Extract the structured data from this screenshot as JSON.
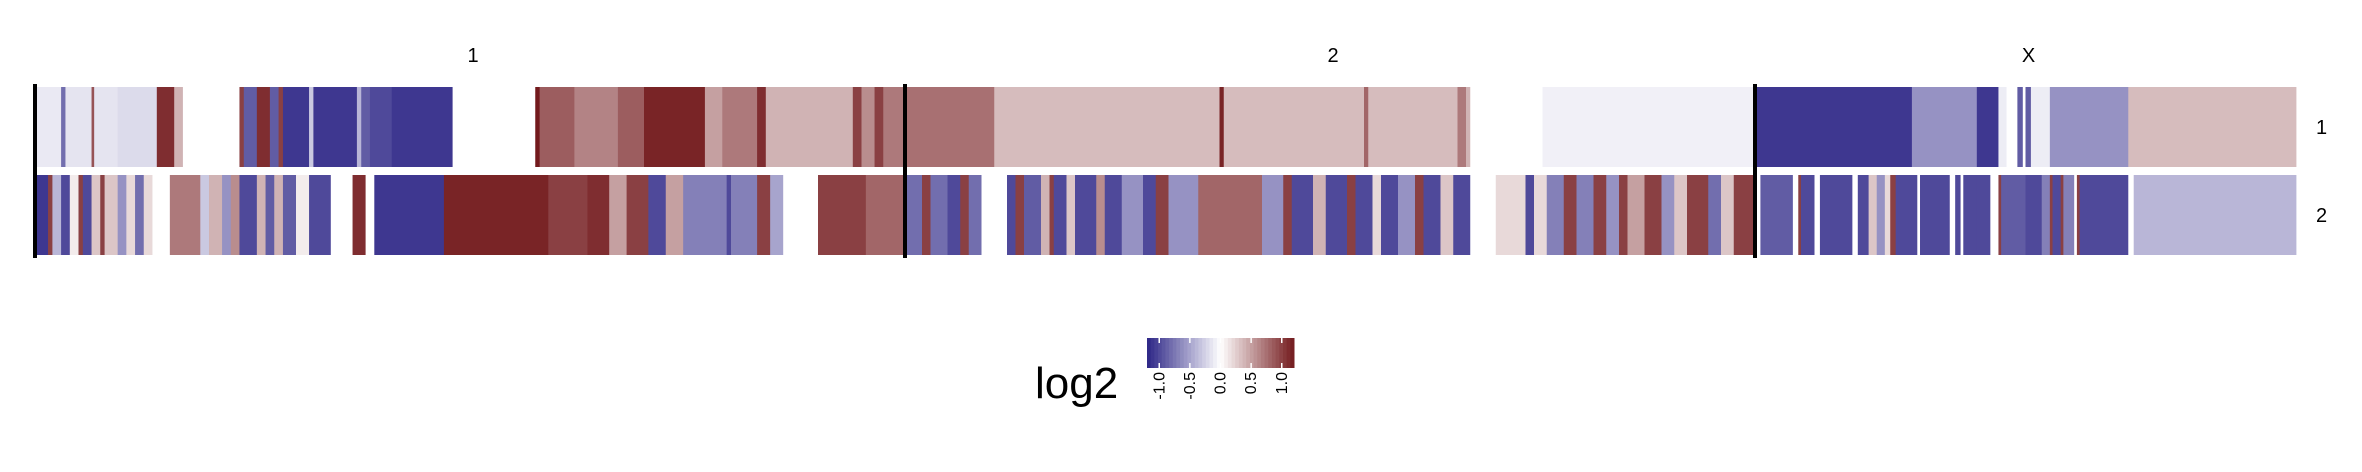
{
  "chart_data": {
    "type": "heatmap",
    "chromosomes": [
      "1",
      "2",
      "X"
    ],
    "samples": [
      "1",
      "2"
    ],
    "legend": {
      "title": "log2",
      "ticks": [
        "-1.0",
        "-0.5",
        "0.0",
        "0.5",
        "1.0"
      ],
      "range": [
        -1.2,
        1.2
      ],
      "colors": {
        "low": "#2c2586",
        "mid": "#ffffff",
        "high": "#731a1d"
      }
    },
    "rows": [
      {
        "sample": "1",
        "segments": {
          "1": [
            [
              0,
              0.03,
              -0.12
            ],
            [
              0.03,
              0.035,
              -0.8
            ],
            [
              0.035,
              0.065,
              -0.15
            ],
            [
              0.065,
              0.068,
              0.9
            ],
            [
              0.068,
              0.095,
              -0.15
            ],
            [
              0.095,
              0.14,
              -0.2
            ],
            [
              0.14,
              0.16,
              1.1
            ],
            [
              0.16,
              0.17,
              0.4
            ],
            [
              0.17,
              0.235,
              0.0
            ],
            [
              0.235,
              0.24,
              1.0
            ],
            [
              0.24,
              0.255,
              -0.9
            ],
            [
              0.255,
              0.27,
              1.1
            ],
            [
              0.27,
              0.28,
              -0.9
            ],
            [
              0.28,
              0.285,
              1.0
            ],
            [
              0.285,
              0.315,
              -1.1
            ],
            [
              0.315,
              0.32,
              -0.3
            ],
            [
              0.32,
              0.37,
              -1.1
            ],
            [
              0.37,
              0.375,
              -0.4
            ],
            [
              0.375,
              0.385,
              -0.9
            ],
            [
              0.385,
              0.41,
              -1.0
            ],
            [
              0.41,
              0.48,
              -1.1
            ],
            [
              0.48,
              0.575,
              0.0
            ],
            [
              0.575,
              0.58,
              1.2
            ],
            [
              0.58,
              0.62,
              0.85
            ],
            [
              0.62,
              0.67,
              0.65
            ],
            [
              0.67,
              0.7,
              0.85
            ],
            [
              0.7,
              0.77,
              1.15
            ],
            [
              0.77,
              0.79,
              0.5
            ],
            [
              0.79,
              0.83,
              0.7
            ],
            [
              0.83,
              0.84,
              1.1
            ],
            [
              0.84,
              0.94,
              0.4
            ],
            [
              0.94,
              0.95,
              1.0
            ],
            [
              0.95,
              0.965,
              0.6
            ],
            [
              0.965,
              0.975,
              1.0
            ],
            [
              0.975,
              1.0,
              0.7
            ]
          ],
          "2": [
            [
              0,
              0.105,
              0.75
            ],
            [
              0.105,
              0.37,
              0.35
            ],
            [
              0.37,
              0.375,
              1.15
            ],
            [
              0.375,
              0.54,
              0.35
            ],
            [
              0.54,
              0.545,
              0.8
            ],
            [
              0.545,
              0.65,
              0.35
            ],
            [
              0.65,
              0.66,
              0.7
            ],
            [
              0.66,
              0.665,
              0.4
            ],
            [
              0.665,
              0.75,
              0.0
            ],
            [
              0.75,
              1.0,
              -0.08
            ]
          ],
          "X": [
            [
              0,
              0.29,
              -1.1
            ],
            [
              0.29,
              0.41,
              -0.6
            ],
            [
              0.41,
              0.41,
              -0.6
            ],
            [
              0.41,
              0.45,
              -1.1
            ],
            [
              0.45,
              0.465,
              -0.1
            ],
            [
              0.465,
              0.485,
              0.0
            ],
            [
              0.485,
              0.495,
              -0.9
            ],
            [
              0.495,
              0.5,
              0.0
            ],
            [
              0.5,
              0.51,
              -0.9
            ],
            [
              0.51,
              0.515,
              -0.1
            ],
            [
              0.515,
              0.545,
              -0.1
            ],
            [
              0.545,
              0.61,
              -0.6
            ],
            [
              0.61,
              0.69,
              -0.6
            ],
            [
              0.69,
              1.0,
              0.35
            ]
          ]
        }
      },
      {
        "sample": "2",
        "segments": {
          "1": [
            [
              0,
              0.015,
              -1.1
            ],
            [
              0.015,
              0.02,
              1.0
            ],
            [
              0.02,
              0.03,
              -0.4
            ],
            [
              0.03,
              0.04,
              -1.0
            ],
            [
              0.04,
              0.05,
              0.1
            ],
            [
              0.05,
              0.055,
              1.0
            ],
            [
              0.055,
              0.065,
              -1.0
            ],
            [
              0.065,
              0.075,
              0.3
            ],
            [
              0.075,
              0.08,
              1.0
            ],
            [
              0.08,
              0.095,
              0.3
            ],
            [
              0.095,
              0.105,
              -0.6
            ],
            [
              0.105,
              0.115,
              0.2
            ],
            [
              0.115,
              0.125,
              -0.8
            ],
            [
              0.125,
              0.135,
              0.2
            ],
            [
              0.135,
              0.155,
              0.0
            ],
            [
              0.155,
              0.19,
              0.7
            ],
            [
              0.19,
              0.2,
              -0.3
            ],
            [
              0.2,
              0.215,
              0.4
            ],
            [
              0.215,
              0.225,
              -0.6
            ],
            [
              0.225,
              0.235,
              0.6
            ],
            [
              0.235,
              0.255,
              -1.0
            ],
            [
              0.255,
              0.265,
              0.4
            ],
            [
              0.265,
              0.275,
              -0.9
            ],
            [
              0.275,
              0.285,
              0.4
            ],
            [
              0.285,
              0.3,
              -0.9
            ],
            [
              0.3,
              0.315,
              0.1
            ],
            [
              0.315,
              0.34,
              -1.0
            ],
            [
              0.34,
              0.365,
              0.0
            ],
            [
              0.365,
              0.38,
              1.1
            ],
            [
              0.38,
              0.39,
              0.0
            ],
            [
              0.39,
              0.47,
              -1.1
            ],
            [
              0.47,
              0.59,
              1.15
            ],
            [
              0.59,
              0.635,
              1.0
            ],
            [
              0.635,
              0.66,
              1.1
            ],
            [
              0.66,
              0.68,
              0.5
            ],
            [
              0.68,
              0.705,
              1.0
            ],
            [
              0.705,
              0.725,
              -1.0
            ],
            [
              0.725,
              0.745,
              0.5
            ],
            [
              0.745,
              0.795,
              -0.7
            ],
            [
              0.795,
              0.8,
              -1.0
            ],
            [
              0.8,
              0.83,
              -0.7
            ],
            [
              0.83,
              0.845,
              1.0
            ],
            [
              0.845,
              0.86,
              -0.5
            ],
            [
              0.86,
              0.9,
              0.0
            ],
            [
              0.9,
              0.955,
              1.0
            ],
            [
              0.955,
              1.0,
              0.8
            ]
          ],
          "2": [
            [
              0,
              0.02,
              -0.8
            ],
            [
              0.02,
              0.03,
              1.0
            ],
            [
              0.03,
              0.05,
              -0.8
            ],
            [
              0.05,
              0.065,
              -1.0
            ],
            [
              0.065,
              0.075,
              1.0
            ],
            [
              0.075,
              0.09,
              -0.8
            ],
            [
              0.09,
              0.12,
              0.0
            ],
            [
              0.12,
              0.13,
              -1.0
            ],
            [
              0.13,
              0.14,
              1.0
            ],
            [
              0.14,
              0.16,
              -0.9
            ],
            [
              0.16,
              0.17,
              0.4
            ],
            [
              0.17,
              0.175,
              1.0
            ],
            [
              0.175,
              0.19,
              -1.0
            ],
            [
              0.19,
              0.2,
              0.3
            ],
            [
              0.2,
              0.225,
              -1.0
            ],
            [
              0.225,
              0.235,
              0.6
            ],
            [
              0.235,
              0.255,
              -1.0
            ],
            [
              0.255,
              0.28,
              -0.6
            ],
            [
              0.28,
              0.295,
              -1.0
            ],
            [
              0.295,
              0.31,
              1.0
            ],
            [
              0.31,
              0.345,
              -0.6
            ],
            [
              0.345,
              0.42,
              0.8
            ],
            [
              0.42,
              0.445,
              -0.6
            ],
            [
              0.445,
              0.455,
              1.0
            ],
            [
              0.455,
              0.48,
              -1.0
            ],
            [
              0.48,
              0.495,
              0.4
            ],
            [
              0.495,
              0.52,
              -1.0
            ],
            [
              0.52,
              0.53,
              1.0
            ],
            [
              0.53,
              0.55,
              -1.0
            ],
            [
              0.55,
              0.56,
              0.2
            ],
            [
              0.56,
              0.58,
              -1.0
            ],
            [
              0.58,
              0.6,
              -0.6
            ],
            [
              0.6,
              0.61,
              1.0
            ],
            [
              0.61,
              0.63,
              -1.0
            ],
            [
              0.63,
              0.645,
              0.3
            ],
            [
              0.645,
              0.665,
              -1.0
            ],
            [
              0.665,
              0.695,
              0.0
            ],
            [
              0.695,
              0.73,
              0.2
            ],
            [
              0.73,
              0.74,
              -1.0
            ],
            [
              0.74,
              0.755,
              0.2
            ],
            [
              0.755,
              0.775,
              -0.7
            ],
            [
              0.775,
              0.79,
              1.0
            ],
            [
              0.79,
              0.81,
              -0.7
            ],
            [
              0.81,
              0.825,
              1.0
            ],
            [
              0.825,
              0.84,
              -0.6
            ],
            [
              0.84,
              0.85,
              1.0
            ],
            [
              0.85,
              0.87,
              0.5
            ],
            [
              0.87,
              0.89,
              1.0
            ],
            [
              0.89,
              0.905,
              -0.6
            ],
            [
              0.905,
              0.92,
              0.3
            ],
            [
              0.92,
              0.945,
              1.0
            ],
            [
              0.945,
              0.96,
              -0.8
            ],
            [
              0.96,
              0.975,
              0.3
            ],
            [
              0.975,
              1.0,
              1.0
            ]
          ],
          "X": [
            [
              0,
              0.01,
              0.0
            ],
            [
              0.01,
              0.07,
              -0.9
            ],
            [
              0.07,
              0.08,
              0.0
            ],
            [
              0.08,
              0.085,
              1.0
            ],
            [
              0.085,
              0.11,
              -1.0
            ],
            [
              0.11,
              0.12,
              0.0
            ],
            [
              0.12,
              0.18,
              -1.0
            ],
            [
              0.18,
              0.19,
              0.0
            ],
            [
              0.19,
              0.21,
              -1.0
            ],
            [
              0.21,
              0.225,
              0.3
            ],
            [
              0.225,
              0.24,
              -0.6
            ],
            [
              0.24,
              0.25,
              0.2
            ],
            [
              0.25,
              0.26,
              1.0
            ],
            [
              0.26,
              0.3,
              -1.0
            ],
            [
              0.3,
              0.305,
              0.0
            ],
            [
              0.305,
              0.36,
              -1.0
            ],
            [
              0.36,
              0.37,
              0.0
            ],
            [
              0.37,
              0.38,
              -1.0
            ],
            [
              0.38,
              0.385,
              0.0
            ],
            [
              0.385,
              0.41,
              -1.0
            ],
            [
              0.41,
              0.435,
              -1.0
            ],
            [
              0.435,
              0.45,
              0.0
            ],
            [
              0.45,
              0.455,
              1.0
            ],
            [
              0.455,
              0.465,
              -0.9
            ],
            [
              0.465,
              0.5,
              -0.9
            ],
            [
              0.5,
              0.53,
              -1.0
            ],
            [
              0.53,
              0.545,
              -0.7
            ],
            [
              0.545,
              0.55,
              1.0
            ],
            [
              0.55,
              0.565,
              -1.0
            ],
            [
              0.565,
              0.57,
              1.0
            ],
            [
              0.57,
              0.59,
              -0.7
            ],
            [
              0.59,
              0.595,
              0.0
            ],
            [
              0.595,
              0.6,
              1.0
            ],
            [
              0.6,
              0.69,
              -1.0
            ],
            [
              0.69,
              0.7,
              0.0
            ],
            [
              0.7,
              0.75,
              -0.4
            ],
            [
              0.75,
              0.9,
              -0.4
            ],
            [
              0.9,
              1.0,
              -0.4
            ]
          ]
        }
      }
    ]
  }
}
